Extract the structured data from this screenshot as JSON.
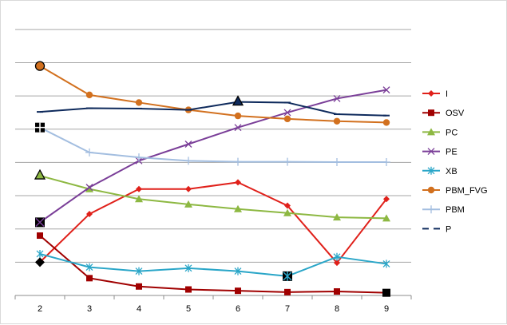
{
  "chart_data": {
    "type": "line",
    "categories": [
      "2",
      "3",
      "4",
      "5",
      "6",
      "7",
      "8",
      "9"
    ],
    "ylim": [
      0,
      8.5
    ],
    "grid": true,
    "legend_position": "right",
    "series": [
      {
        "name": "I",
        "color": "#e0201a",
        "marker": "diamond",
        "values": [
          1.0,
          2.45,
          3.2,
          3.2,
          3.4,
          2.7,
          0.98,
          2.9
        ]
      },
      {
        "name": "OSV",
        "color": "#a00000",
        "marker": "square",
        "values": [
          1.8,
          0.52,
          0.27,
          0.18,
          0.14,
          0.1,
          0.12,
          0.08
        ]
      },
      {
        "name": "PC",
        "color": "#8db842",
        "marker": "triangle",
        "values": [
          3.6,
          3.2,
          2.9,
          2.74,
          2.6,
          2.48,
          2.35,
          2.32
        ]
      },
      {
        "name": "PE",
        "color": "#7a3e98",
        "marker": "x",
        "values": [
          2.2,
          3.25,
          4.05,
          4.55,
          5.05,
          5.5,
          5.92,
          6.18
        ]
      },
      {
        "name": "XB",
        "color": "#2aa6c8",
        "marker": "star",
        "values": [
          1.25,
          0.85,
          0.73,
          0.82,
          0.73,
          0.58,
          1.16,
          0.95
        ]
      },
      {
        "name": "PBM_FVG",
        "color": "#d2701e",
        "marker": "circle",
        "values": [
          6.9,
          6.03,
          5.8,
          5.58,
          5.4,
          5.31,
          5.24,
          5.2
        ]
      },
      {
        "name": "PBM",
        "color": "#a3bee0",
        "marker": "plus",
        "values": [
          5.05,
          4.3,
          4.15,
          4.05,
          4.02,
          4.02,
          4.01,
          4.01
        ]
      },
      {
        "name": "P",
        "color": "#0e2a5c",
        "marker": "dash",
        "values": [
          5.52,
          5.63,
          5.62,
          5.58,
          5.82,
          5.8,
          5.45,
          5.41
        ]
      }
    ]
  }
}
